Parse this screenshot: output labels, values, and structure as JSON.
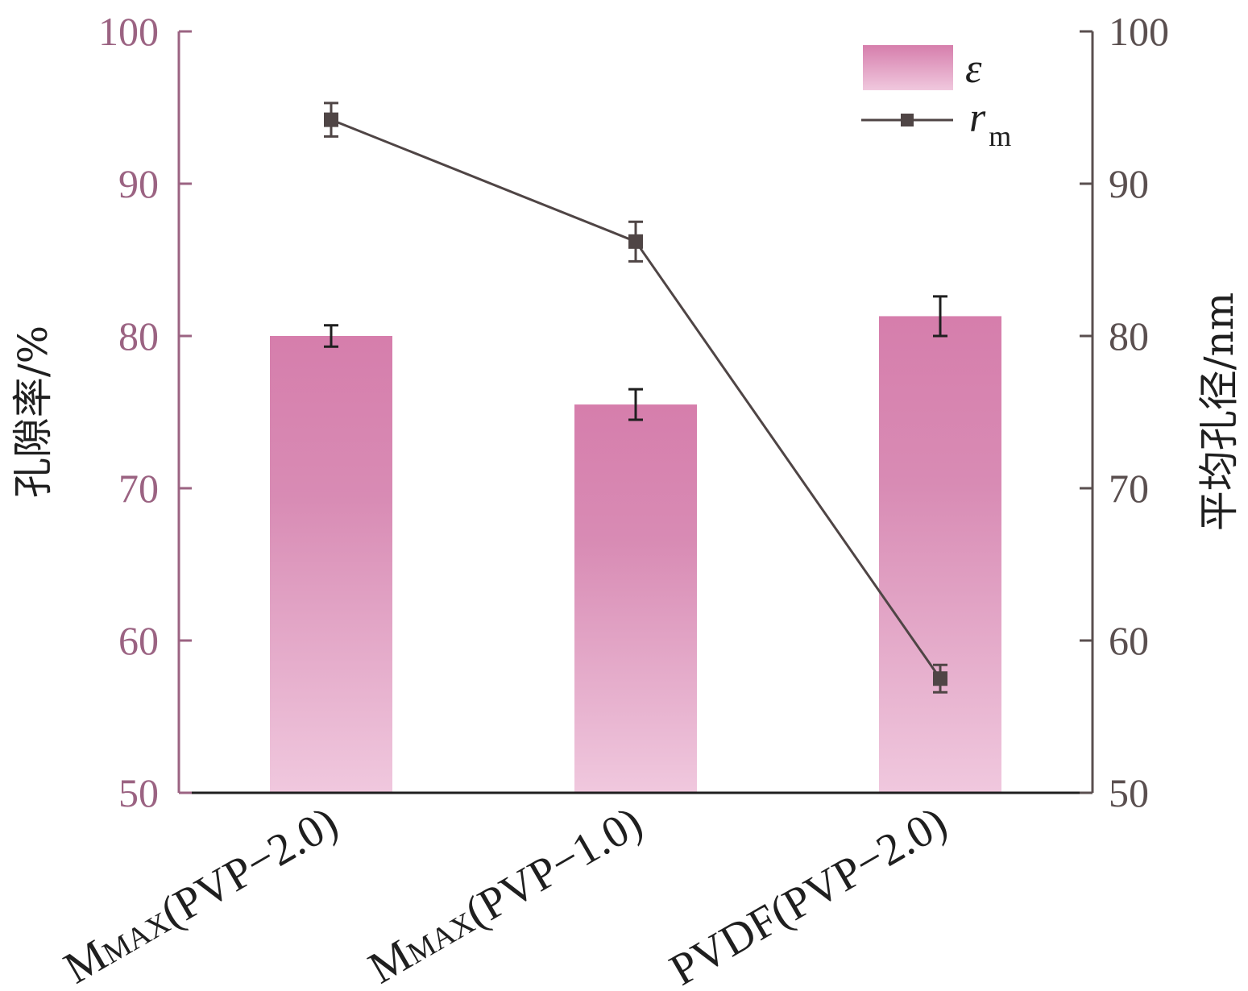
{
  "chart_data": {
    "type": "bar",
    "categories": [
      "MMAX(PVP−2.0)",
      "MMAX(PVP−1.0)",
      "PVDF(PVP−2.0)"
    ],
    "category_labels": [
      {
        "main": "M",
        "small": "MAX",
        "rest": "(PVP−2.0)"
      },
      {
        "main": "M",
        "small": "MAX",
        "rest": "(PVP−1.0)"
      },
      {
        "main": "",
        "small": "",
        "rest": "PVDF(PVP−2.0)"
      }
    ],
    "series": [
      {
        "name": "ε",
        "type": "bar",
        "axis": "left",
        "values": [
          80.0,
          75.5,
          81.3
        ],
        "errors": [
          0.7,
          1.0,
          1.3
        ]
      },
      {
        "name": "r",
        "subscript": "m",
        "type": "line",
        "axis": "right",
        "values": [
          94.2,
          86.2,
          57.5
        ],
        "errors": [
          1.1,
          1.3,
          0.9
        ]
      }
    ],
    "ylabel_left": "孔隙率/%",
    "ylabel_right": "平均孔径/nm",
    "ylim_left": [
      50,
      100
    ],
    "ylim_right": [
      50,
      100
    ],
    "yticks": [
      50,
      60,
      70,
      80,
      90,
      100
    ],
    "legend_position": "top-right",
    "grid": false,
    "colors": {
      "bar_top": "#d67eac",
      "bar_bottom": "#f0c8de",
      "left_axis": "#9b6382",
      "right_axis": "#5a4f4f",
      "line": "#4f4545",
      "error_bar": "#1f1f1f"
    }
  }
}
